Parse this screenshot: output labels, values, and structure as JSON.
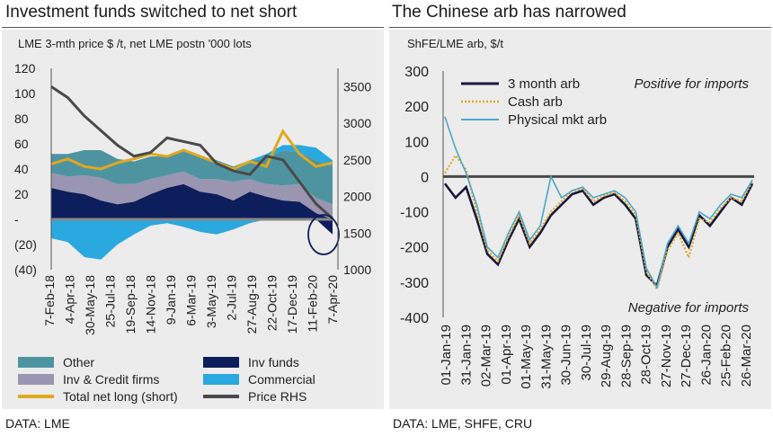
{
  "left": {
    "title": "Investment funds switched to net short",
    "source": "DATA: LME",
    "chart_data": {
      "type": "area",
      "subtitle": "LME 3-mth price $ /t, net LME postn '000 lots",
      "ylim": [
        -40,
        120
      ],
      "y_ticks": [
        "120",
        "100",
        "80",
        "60",
        "40",
        "20",
        "-",
        "(20)",
        "(40)"
      ],
      "y2lim": [
        1000,
        3750
      ],
      "y2_ticks": [
        "3500",
        "3000",
        "2500",
        "2000",
        "1500",
        "1000"
      ],
      "x_labels": [
        "7-Feb-18",
        "4-Apr-18",
        "30-May-18",
        "25-Jul-18",
        "19-Sep-18",
        "14-Nov-18",
        "9-Jan-19",
        "6-Mar-19",
        "3-May-19",
        "2-Jul-19",
        "27-Aug-19",
        "22-Oct-19",
        "17-Dec-19",
        "11-Feb-20",
        "7-Apr-20"
      ],
      "legend": [
        "Other",
        "Inv & Credit firms",
        "Total net long (short)",
        "Inv funds",
        "Commercial",
        "Price RHS"
      ],
      "colors": {
        "other": "#4e94a0",
        "inv_credit": "#9a95b0",
        "total": "#e0a81f",
        "inv_funds": "#0d1e5c",
        "commercial": "#2aa8e0",
        "price": "#4a4a4a"
      },
      "series": [
        {
          "name": "Inv funds",
          "values": [
            25,
            22,
            20,
            15,
            12,
            14,
            20,
            25,
            28,
            22,
            20,
            15,
            22,
            18,
            15,
            14,
            5,
            -12
          ]
        },
        {
          "name": "Inv & Credit firms",
          "values": [
            12,
            12,
            15,
            18,
            16,
            14,
            12,
            10,
            10,
            10,
            12,
            15,
            10,
            10,
            12,
            14,
            12,
            12
          ]
        },
        {
          "name": "Other",
          "values": [
            15,
            18,
            20,
            22,
            20,
            18,
            18,
            15,
            18,
            18,
            15,
            12,
            15,
            20,
            28,
            25,
            30,
            30
          ]
        },
        {
          "name": "Commercial",
          "values": [
            -15,
            -18,
            -30,
            -32,
            -20,
            -12,
            -5,
            -3,
            -6,
            -10,
            -12,
            -8,
            -3,
            4,
            4,
            6,
            10,
            5
          ]
        },
        {
          "name": "Total net long (short)",
          "values": [
            44,
            48,
            42,
            40,
            45,
            48,
            52,
            50,
            55,
            50,
            45,
            40,
            46,
            42,
            70,
            52,
            42,
            45
          ]
        },
        {
          "name": "Price RHS",
          "values": [
            3500,
            3350,
            3100,
            2900,
            2700,
            2550,
            2600,
            2800,
            2750,
            2700,
            2450,
            2350,
            2300,
            2550,
            2500,
            2200,
            1900,
            1700
          ]
        }
      ]
    }
  },
  "right": {
    "title": "The Chinese arb has narrowed",
    "source": "DATA: LME, SHFE, CRU",
    "chart_data": {
      "type": "line",
      "subtitle": "ShFE/LME arb, $/t",
      "ylim": [
        -400,
        300
      ],
      "y_ticks": [
        "300",
        "200",
        "100",
        "0",
        "-100",
        "-200",
        "-300",
        "-400"
      ],
      "x_labels": [
        "01-Jan-19",
        "31-Jan-19",
        "02-Mar-19",
        "01-Apr-19",
        "01-May-19",
        "31-May-19",
        "30-Jun-19",
        "30-Jul-19",
        "29-Aug-19",
        "28-Sep-19",
        "28-Oct-19",
        "27-Nov-19",
        "27-Dec-19",
        "26-Jan-20",
        "25-Feb-20",
        "26-Mar-20"
      ],
      "annotations": [
        "Positive for imports",
        "Negative for imports"
      ],
      "colors": {
        "three_month": "#1a1640",
        "cash": "#e0a81f",
        "physical": "#4aa8cc",
        "zero_line": "#4a4a4a"
      },
      "series": [
        {
          "name": "3 month arb",
          "values": [
            -20,
            -60,
            -30,
            -120,
            -220,
            -250,
            -180,
            -120,
            -200,
            -160,
            -110,
            -80,
            -50,
            -40,
            -80,
            -60,
            -50,
            -80,
            -120,
            -280,
            -310,
            -200,
            -150,
            -200,
            -110,
            -140,
            -100,
            -60,
            -80,
            -20
          ]
        },
        {
          "name": "Cash arb",
          "values": [
            10,
            60,
            20,
            -100,
            -210,
            -240,
            -170,
            -110,
            -190,
            -150,
            -100,
            -70,
            -40,
            -35,
            -70,
            -55,
            -45,
            -70,
            -110,
            -270,
            -320,
            -210,
            -160,
            -230,
            -120,
            -130,
            -90,
            -60,
            -70,
            -15
          ]
        },
        {
          "name": "Physical mkt arb",
          "values": [
            170,
            80,
            10,
            -80,
            -200,
            -230,
            -160,
            -100,
            -180,
            -140,
            0,
            -60,
            -40,
            -30,
            -60,
            -50,
            -40,
            -60,
            -100,
            -260,
            -315,
            -190,
            -140,
            -190,
            -100,
            -120,
            -80,
            -50,
            -60,
            -10
          ]
        }
      ]
    }
  }
}
